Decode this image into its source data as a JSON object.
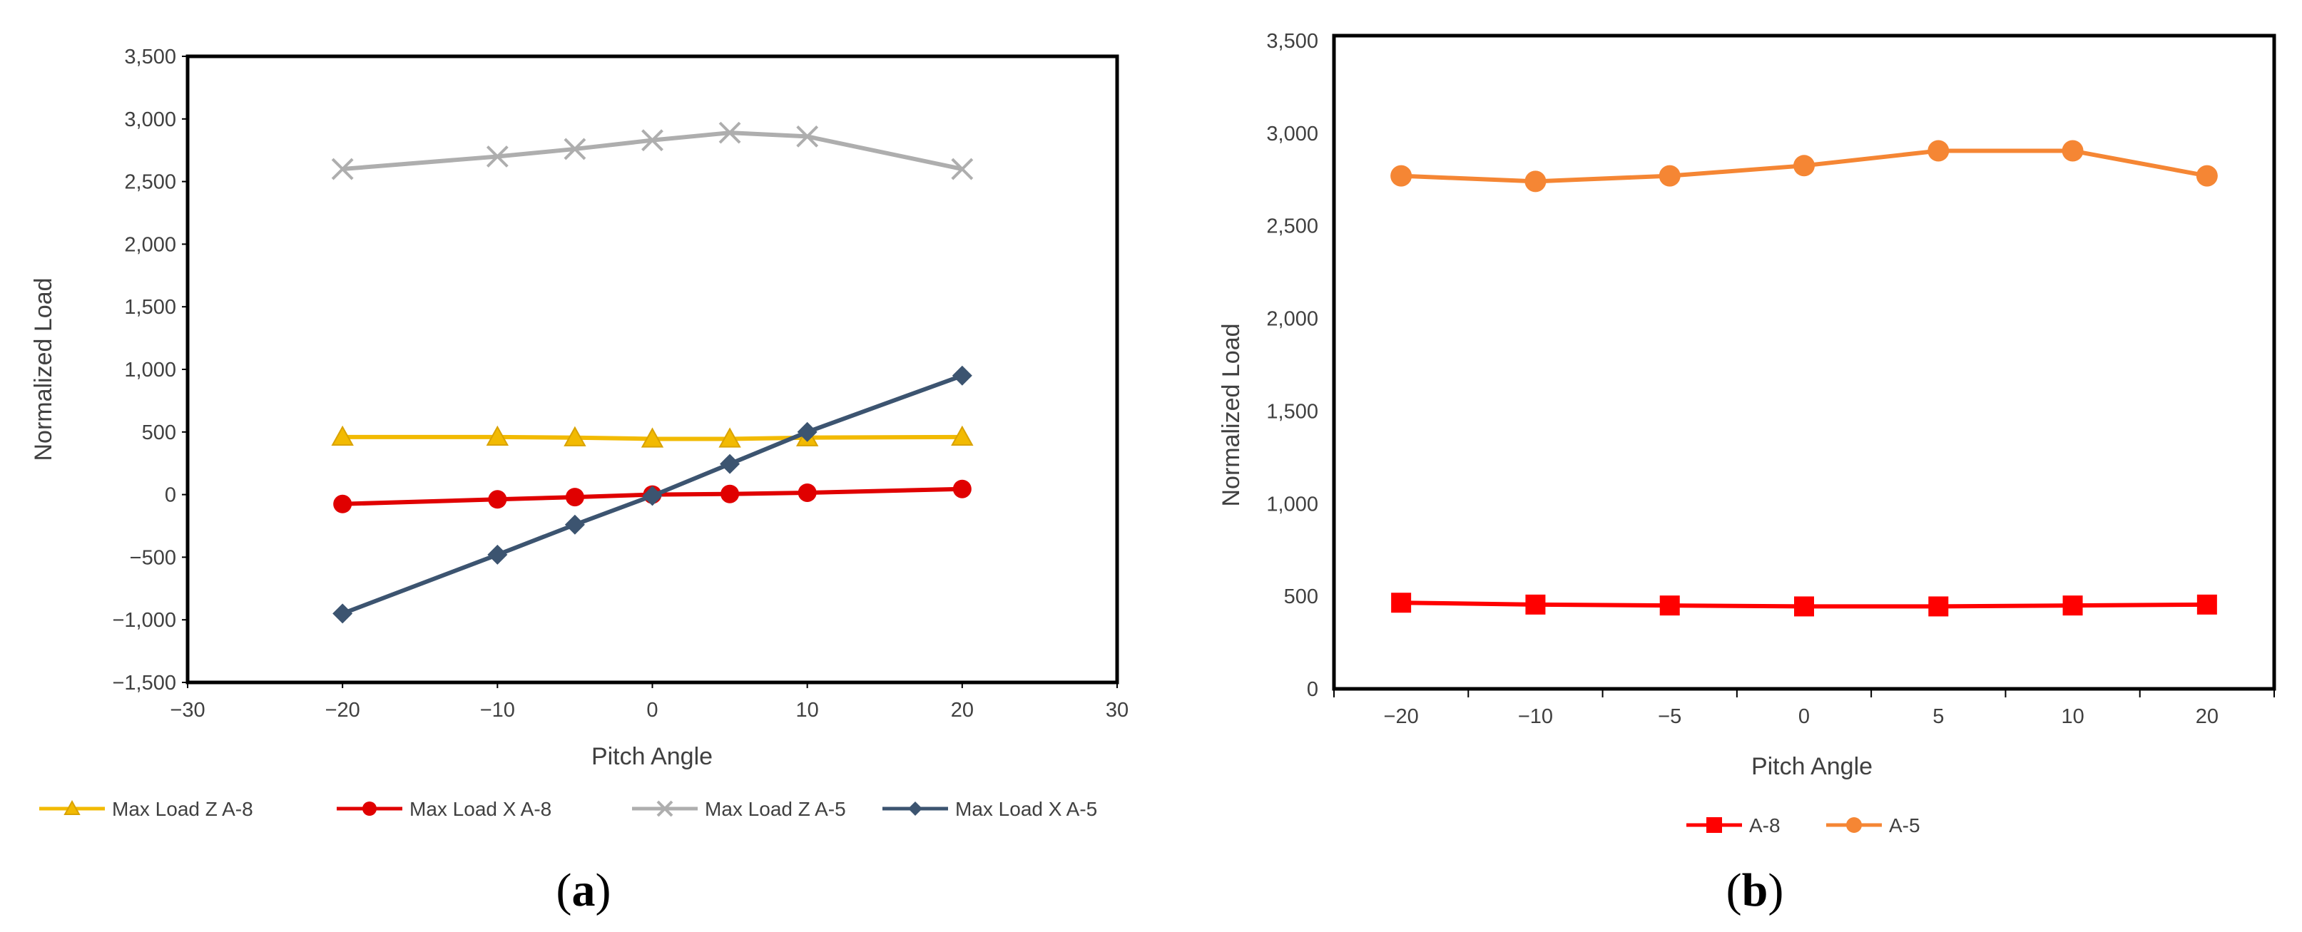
{
  "chart_data": [
    {
      "panel": "a",
      "panel_label": "a",
      "type": "line",
      "title": "",
      "xlabel": "Pitch Angle",
      "ylabel": "Normalized Load",
      "xlim": [
        -30,
        30
      ],
      "ylim": [
        -1500,
        3500
      ],
      "xticks": [
        -30,
        -20,
        -10,
        0,
        10,
        20,
        30
      ],
      "xtick_labels": [
        "−30",
        "−20",
        "−10",
        "0",
        "10",
        "20",
        "30"
      ],
      "yticks": [
        -1500,
        -1000,
        -500,
        0,
        500,
        1000,
        1500,
        2000,
        2500,
        3000,
        3500
      ],
      "ytick_labels": [
        "−1,500",
        "−1,000",
        "−500",
        "0",
        "500",
        "1,000",
        "1,500",
        "2,000",
        "2,500",
        "3,000",
        "3,500"
      ],
      "grid": false,
      "legend_position": "bottom",
      "x": [
        -20,
        -10,
        -5,
        0,
        5,
        10,
        20
      ],
      "series": [
        {
          "name": "Max Load Z A-8",
          "color": "#F2BA02",
          "marker": "triangle",
          "values": [
            460,
            460,
            455,
            445,
            445,
            455,
            460
          ]
        },
        {
          "name": "Max Load X A-8",
          "color": "#E00000",
          "marker": "circle",
          "values": [
            -75,
            -38,
            -20,
            0,
            5,
            15,
            45
          ]
        },
        {
          "name": "Max Load Z A-5",
          "color": "#AEAEAE",
          "marker": "cross",
          "values": [
            2600,
            2700,
            2760,
            2830,
            2890,
            2860,
            2600
          ]
        },
        {
          "name": "Max Load X A-5",
          "color": "#3C5470",
          "marker": "diamond",
          "values": [
            -950,
            -480,
            -240,
            -10,
            245,
            500,
            950
          ]
        }
      ]
    },
    {
      "panel": "b",
      "panel_label": "b",
      "type": "line",
      "title": "",
      "xlabel": "Pitch Angle",
      "ylabel": "Normalized Load",
      "ylim": [
        0,
        3500
      ],
      "categories": [
        "−20",
        "−10",
        "−5",
        "0",
        "5",
        "10",
        "20"
      ],
      "yticks": [
        0,
        500,
        1000,
        1500,
        2000,
        2500,
        3000,
        3500
      ],
      "ytick_labels": [
        "0",
        "500",
        "1,000",
        "1,500",
        "2,000",
        "2,500",
        "3,000",
        "3,500"
      ],
      "grid": false,
      "legend_position": "bottom",
      "series": [
        {
          "name": "A-8",
          "color": "#FF0000",
          "marker": "square",
          "values": [
            465,
            455,
            450,
            445,
            445,
            450,
            455
          ]
        },
        {
          "name": "A-5",
          "color": "#F58634",
          "marker": "circle",
          "values": [
            2770,
            2740,
            2770,
            2825,
            2905,
            2905,
            2770
          ]
        }
      ]
    }
  ]
}
